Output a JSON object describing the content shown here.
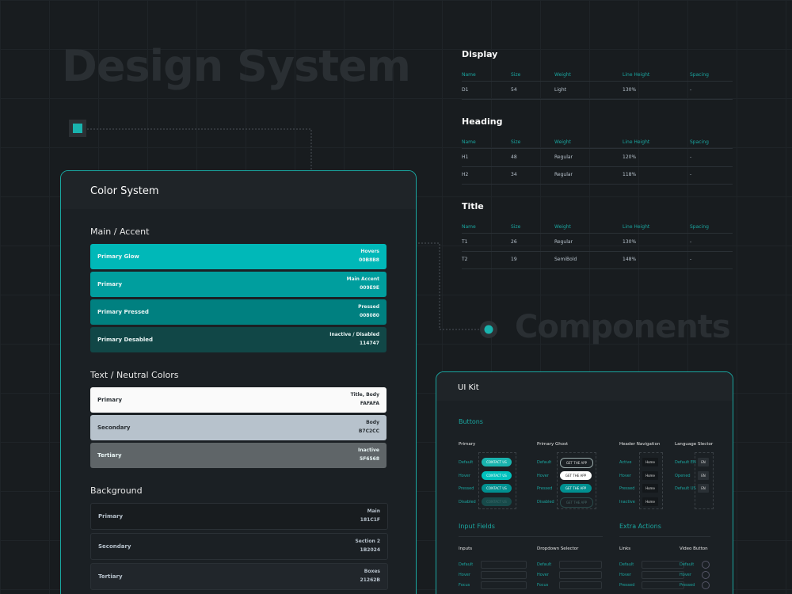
{
  "header": {
    "title": "Design System",
    "components": "Components"
  },
  "color_system": {
    "title": "Color System",
    "groups": [
      {
        "title": "Main / Accent",
        "swatches": [
          {
            "name": "Primary Glow",
            "usage": "Hovers",
            "hex": "00B8B8"
          },
          {
            "name": "Primary",
            "usage": "Main Accent",
            "hex": "009E9E"
          },
          {
            "name": "Primary Pressed",
            "usage": "Pressed",
            "hex": "008080"
          },
          {
            "name": "Primary Desabled",
            "usage": "Inactive / Disabled",
            "hex": "114747"
          }
        ]
      },
      {
        "title": "Text / Neutral Colors",
        "swatches": [
          {
            "name": "Primary",
            "usage": "Title, Body",
            "hex": "FAFAFA"
          },
          {
            "name": "Secondary",
            "usage": "Body",
            "hex": "B7C2CC"
          },
          {
            "name": "Tertiary",
            "usage": "Inactive",
            "hex": "5F6568"
          }
        ]
      },
      {
        "title": "Background",
        "swatches": [
          {
            "name": "Primary",
            "usage": "Main",
            "hex": "181C1F"
          },
          {
            "name": "Secondary",
            "usage": "Section 2",
            "hex": "1B2024"
          },
          {
            "name": "Tertiary",
            "usage": "Boxes",
            "hex": "21262B"
          }
        ]
      }
    ]
  },
  "typography": [
    {
      "title": "Display",
      "columns": [
        "Name",
        "Size",
        "Weight",
        "Line Height",
        "Spacing"
      ],
      "rows": [
        [
          "D1",
          "54",
          "Light",
          "130%",
          "-"
        ]
      ]
    },
    {
      "title": "Heading",
      "columns": [
        "Name",
        "Size",
        "Weight",
        "Line Height",
        "Spacing"
      ],
      "rows": [
        [
          "H1",
          "48",
          "Regular",
          "120%",
          "-"
        ],
        [
          "H2",
          "34",
          "Regular",
          "118%",
          "-"
        ]
      ]
    },
    {
      "title": "Title",
      "columns": [
        "Name",
        "Size",
        "Weight",
        "Line Height",
        "Spacing"
      ],
      "rows": [
        [
          "T1",
          "26",
          "Regular",
          "130%",
          "-"
        ],
        [
          "T2",
          "19",
          "SemiBold",
          "148%",
          "-"
        ]
      ]
    }
  ],
  "ui_kit": {
    "title": "UI Kit",
    "buttons": {
      "title": "Buttons",
      "groups": [
        {
          "title": "Primary",
          "states": [
            "Default",
            "Hover",
            "Pressed",
            "Disabled"
          ],
          "label": "CONTACT US"
        },
        {
          "title": "Primary Ghost",
          "states": [
            "Default",
            "Hover",
            "Pressed",
            "Disabled"
          ],
          "label": "GET THE APP"
        },
        {
          "title": "Header Navigation",
          "states": [
            "Active",
            "Hover",
            "Pressed",
            "Inactive"
          ],
          "label": "Home"
        },
        {
          "title": "Language Slector",
          "states": [
            "Default EN",
            "Opened",
            "Default US"
          ],
          "label": "EN"
        }
      ]
    },
    "input_fields": {
      "title": "Input Fields",
      "groups": [
        {
          "title": "Inputs",
          "states": [
            "Default",
            "Hover",
            "Focus"
          ]
        },
        {
          "title": "Dropdown Selector",
          "states": [
            "Default",
            "Hover",
            "Focus"
          ]
        }
      ]
    },
    "extra_actions": {
      "title": "Extra Actions",
      "groups": [
        {
          "title": "Links",
          "states": [
            "Default",
            "Hover",
            "Pressed"
          ]
        },
        {
          "title": "Video Button",
          "states": [
            "Default",
            "Hover",
            "Pressed"
          ]
        }
      ]
    }
  }
}
